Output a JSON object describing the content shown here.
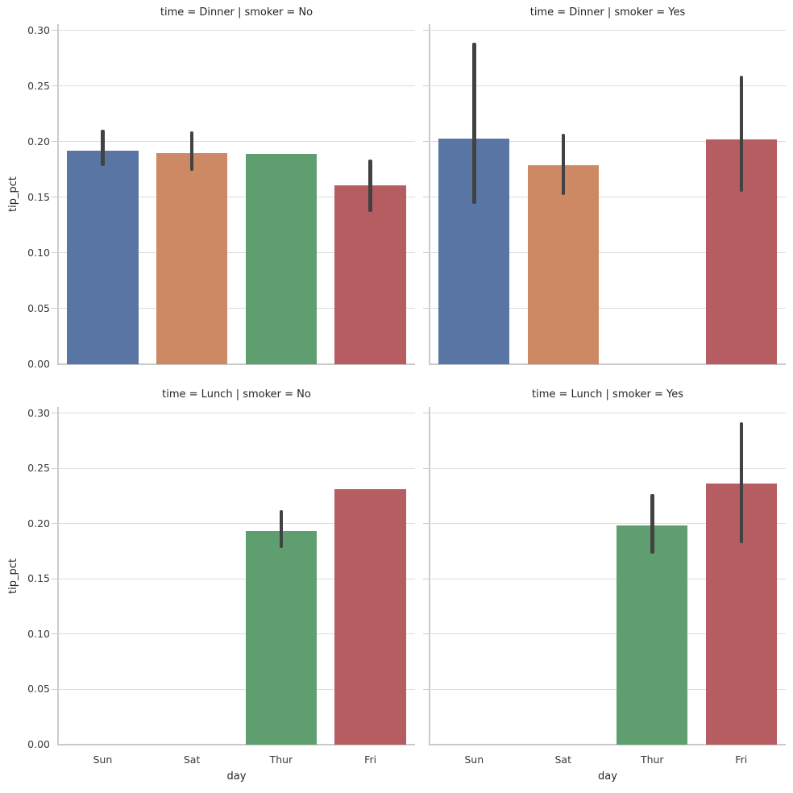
{
  "chart_data": {
    "type": "bar",
    "facet_row_variable": "time",
    "facet_col_variable": "smoker",
    "xlabel": "day",
    "ylabel": "tip_pct",
    "categories": [
      "Sun",
      "Sat",
      "Thur",
      "Fri"
    ],
    "yticks": [
      "0.00",
      "0.05",
      "0.10",
      "0.15",
      "0.20",
      "0.25",
      "0.30"
    ],
    "ylim": [
      0,
      0.3
    ],
    "grid": true,
    "legend": false,
    "palette": [
      "#5875A4",
      "#CC8963",
      "#5F9E6E",
      "#B55D60"
    ],
    "error_bar_color": "#424242",
    "panels": [
      {
        "title": "time = Dinner | smoker = No",
        "show_ytick_labels": true,
        "show_xtick_labels": false,
        "bars": [
          {
            "category": "Sun",
            "value": 0.192,
            "ci": [
              0.178,
              0.211
            ]
          },
          {
            "category": "Sat",
            "value": 0.19,
            "ci": [
              0.174,
              0.209
            ]
          },
          {
            "category": "Thur",
            "value": 0.189,
            "ci": null
          },
          {
            "category": "Fri",
            "value": 0.161,
            "ci": [
              0.137,
              0.184
            ]
          }
        ]
      },
      {
        "title": "time = Dinner | smoker = Yes",
        "show_ytick_labels": false,
        "show_xtick_labels": false,
        "bars": [
          {
            "category": "Sun",
            "value": 0.203,
            "ci": [
              0.144,
              0.289
            ]
          },
          {
            "category": "Sat",
            "value": 0.179,
            "ci": [
              0.152,
              0.207
            ]
          },
          {
            "category": "Thur",
            "value": null,
            "ci": null
          },
          {
            "category": "Fri",
            "value": 0.202,
            "ci": [
              0.155,
              0.259
            ]
          }
        ]
      },
      {
        "title": "time = Lunch | smoker = No",
        "show_ytick_labels": true,
        "show_xtick_labels": true,
        "bars": [
          {
            "category": "Sun",
            "value": null,
            "ci": null
          },
          {
            "category": "Sat",
            "value": null,
            "ci": null
          },
          {
            "category": "Thur",
            "value": 0.193,
            "ci": [
              0.178,
              0.212
            ]
          },
          {
            "category": "Fri",
            "value": 0.231,
            "ci": null
          }
        ]
      },
      {
        "title": "time = Lunch | smoker = Yes",
        "show_ytick_labels": false,
        "show_xtick_labels": true,
        "bars": [
          {
            "category": "Sun",
            "value": null,
            "ci": null
          },
          {
            "category": "Sat",
            "value": null,
            "ci": null
          },
          {
            "category": "Thur",
            "value": 0.198,
            "ci": [
              0.173,
              0.227
            ]
          },
          {
            "category": "Fri",
            "value": 0.236,
            "ci": [
              0.182,
              0.292
            ]
          }
        ]
      }
    ]
  }
}
